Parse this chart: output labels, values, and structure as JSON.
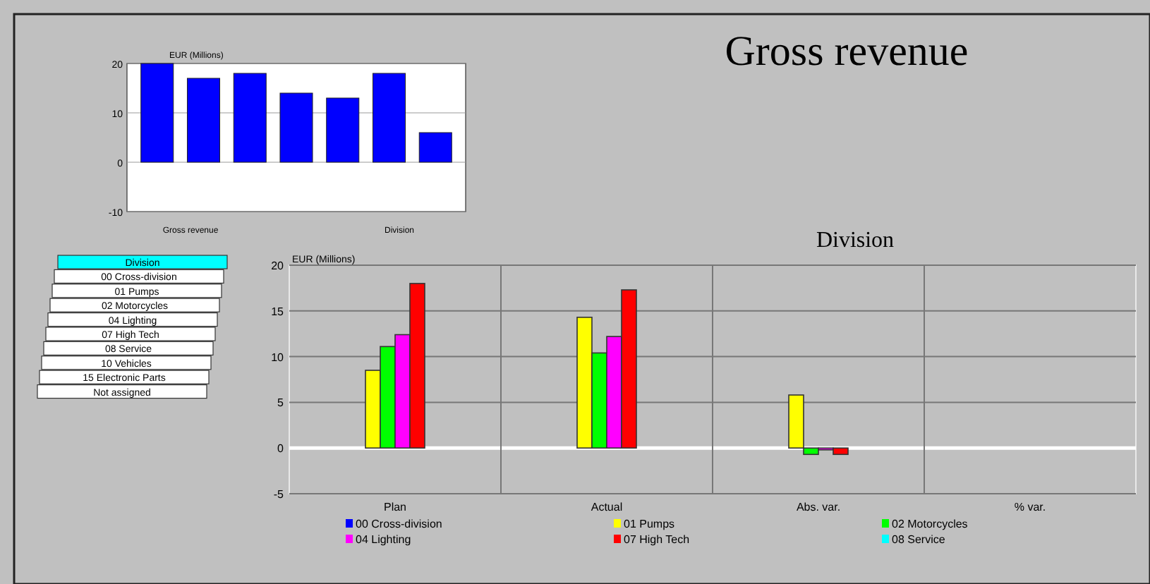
{
  "chart_data": [
    {
      "type": "bar",
      "title": "Gross revenue",
      "subtitle": "Division",
      "ylabel": "EUR (Millions)",
      "categories": [
        "Plan",
        "Actual",
        "Abs. var.",
        "% var."
      ],
      "series": [
        {
          "name": "00 Cross-division",
          "color": "#0000ff",
          "values": [
            null,
            null,
            null,
            null
          ]
        },
        {
          "name": "01 Pumps",
          "color": "#ffff00",
          "values": [
            8.5,
            14.3,
            5.8,
            null
          ]
        },
        {
          "name": "02 Motorcycles",
          "color": "#00ff00",
          "values": [
            11.1,
            10.4,
            -0.7,
            null
          ]
        },
        {
          "name": "04 Lighting",
          "color": "#ff00ff",
          "values": [
            12.4,
            12.2,
            -0.2,
            null
          ]
        },
        {
          "name": "07 High Tech",
          "color": "#ff0000",
          "values": [
            18.0,
            17.3,
            -0.7,
            null
          ]
        },
        {
          "name": "08 Service",
          "color": "#00ffff",
          "values": [
            null,
            null,
            null,
            null
          ]
        }
      ],
      "ylim": [
        -5,
        20
      ],
      "yticks": [
        -5,
        0,
        5,
        10,
        15,
        20
      ],
      "grid": true,
      "legend": "bottom"
    },
    {
      "type": "bar",
      "ylabel": "EUR (Millions)",
      "xlabel": "Gross revenue",
      "annotations": [
        "Division"
      ],
      "categories": [
        null,
        null,
        null,
        null,
        null,
        null,
        null
      ],
      "series": [
        {
          "color": "#0000ff",
          "values": [
            20,
            17,
            18,
            14,
            13,
            18,
            6
          ]
        }
      ],
      "ylim": [
        -10,
        20
      ],
      "yticks": [
        -10,
        0,
        10,
        20
      ],
      "grid": "y"
    },
    {
      "type": "other",
      "annotations": [
        "Division",
        "00 Cross-division",
        "01 Pumps",
        "02 Motorcycles",
        "04 Lighting",
        "07 High Tech",
        "08 Service",
        "10 Vehicles",
        "15 Electronic Parts",
        "Not assigned"
      ]
    }
  ]
}
